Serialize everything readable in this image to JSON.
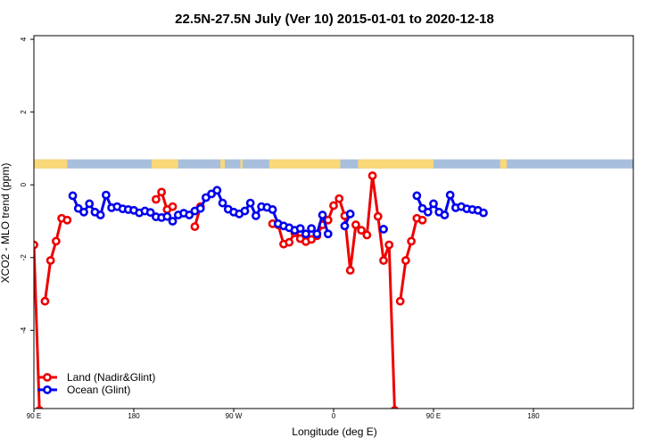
{
  "chart_data": {
    "type": "line",
    "title": "22.5N-27.5N July (Ver 10)   2015-01-01 to 2020-12-18",
    "xlabel": "Longitude (deg E)",
    "ylabel": "XCO2 - MLO trend (ppm)",
    "xlim": [
      -90,
      180
    ],
    "ylim": [
      -6.15,
      4.1
    ],
    "x_ticks": [
      {
        "value": -90,
        "label": "90 E"
      },
      {
        "value": -45,
        "label": "180"
      },
      {
        "value": 0,
        "label": "90 W"
      },
      {
        "value": 45,
        "label": "0"
      },
      {
        "value": 90,
        "label": "90 E"
      },
      {
        "value": 135,
        "label": "180"
      }
    ],
    "y_ticks": [
      {
        "value": 4,
        "label": "4"
      },
      {
        "value": 2,
        "label": "2"
      },
      {
        "value": 0,
        "label": "0"
      },
      {
        "value": -2,
        "label": "-2"
      },
      {
        "value": -4,
        "label": "-4"
      }
    ],
    "grid": false,
    "legend_position": "bottom-left",
    "land_band": {
      "y_top": 0.7,
      "y_bottom": 0.45,
      "ocean_color": "#a8bedd",
      "land_color": "#f8d878",
      "land_ranges": [
        [
          -90,
          -75
        ],
        [
          -37,
          -25
        ],
        [
          -6,
          -4
        ],
        [
          3,
          4
        ],
        [
          16,
          48
        ],
        [
          56,
          90
        ],
        [
          120,
          123
        ]
      ]
    },
    "series": [
      {
        "name": "Land (Nadir&Glint)",
        "color": "#ee0000",
        "segments": [
          [
            [
              -90,
              -1.65
            ],
            [
              -87.5,
              -6.2
            ]
          ],
          [
            [
              -85,
              -3.2
            ],
            [
              -82.5,
              -2.08
            ],
            [
              -80,
              -1.55
            ],
            [
              -77.5,
              -0.92
            ],
            [
              -75,
              -0.97
            ]
          ],
          [
            [
              -35,
              -0.4
            ],
            [
              -32.5,
              -0.2
            ],
            [
              -30,
              -0.68
            ],
            [
              -27.5,
              -0.6
            ]
          ],
          [
            [
              -17.5,
              -1.15
            ],
            [
              -15,
              -0.6
            ]
          ],
          [
            [
              17.5,
              -1.07
            ],
            [
              20,
              -1.1
            ],
            [
              22.5,
              -1.63
            ],
            [
              25,
              -1.58
            ],
            [
              27.5,
              -1.32
            ],
            [
              30,
              -1.48
            ],
            [
              32.5,
              -1.56
            ],
            [
              35,
              -1.5
            ],
            [
              37.5,
              -1.4
            ],
            [
              40,
              -1.1
            ],
            [
              42.5,
              -0.97
            ],
            [
              45,
              -0.57
            ],
            [
              47.5,
              -0.38
            ],
            [
              50,
              -0.85
            ],
            [
              52.5,
              -2.35
            ],
            [
              55,
              -1.1
            ],
            [
              57.5,
              -1.25
            ],
            [
              60,
              -1.38
            ],
            [
              62.5,
              0.25
            ],
            [
              65,
              -0.87
            ],
            [
              67.5,
              -2.08
            ],
            [
              70,
              -1.65
            ],
            [
              72.5,
              -6.2
            ]
          ],
          [
            [
              75,
              -3.2
            ],
            [
              77.5,
              -2.08
            ],
            [
              80,
              -1.55
            ],
            [
              82.5,
              -0.92
            ],
            [
              85,
              -0.97
            ]
          ]
        ]
      },
      {
        "name": "Ocean (Glint)",
        "color": "#0000ee",
        "segments": [
          [
            [
              -72.5,
              -0.3
            ],
            [
              -70,
              -0.65
            ],
            [
              -67.5,
              -0.75
            ],
            [
              -65,
              -0.52
            ],
            [
              -62.5,
              -0.75
            ],
            [
              -60,
              -0.83
            ],
            [
              -57.5,
              -0.28
            ],
            [
              -55,
              -0.63
            ],
            [
              -52.5,
              -0.6
            ],
            [
              -50,
              -0.66
            ],
            [
              -47.5,
              -0.68
            ],
            [
              -45,
              -0.7
            ],
            [
              -42.5,
              -0.77
            ],
            [
              -40,
              -0.72
            ],
            [
              -37.5,
              -0.76
            ],
            [
              -35,
              -0.88
            ],
            [
              -32.5,
              -0.9
            ],
            [
              -30,
              -0.87
            ],
            [
              -27.5,
              -1.0
            ],
            [
              -25,
              -0.83
            ],
            [
              -22.5,
              -0.78
            ],
            [
              -20,
              -0.83
            ],
            [
              -17.5,
              -0.72
            ],
            [
              -15,
              -0.65
            ],
            [
              -12.5,
              -0.35
            ],
            [
              -10,
              -0.25
            ],
            [
              -7.5,
              -0.15
            ],
            [
              -5,
              -0.5
            ],
            [
              -2.5,
              -0.67
            ],
            [
              0,
              -0.75
            ],
            [
              2.5,
              -0.8
            ],
            [
              5,
              -0.72
            ],
            [
              7.5,
              -0.5
            ],
            [
              10,
              -0.85
            ],
            [
              12.5,
              -0.6
            ],
            [
              15,
              -0.62
            ],
            [
              17.5,
              -0.68
            ],
            [
              20,
              -1.07
            ],
            [
              22.5,
              -1.13
            ],
            [
              25,
              -1.18
            ],
            [
              27.5,
              -1.25
            ],
            [
              30,
              -1.2
            ],
            [
              32.5,
              -1.35
            ],
            [
              35,
              -1.2
            ],
            [
              37.5,
              -1.35
            ],
            [
              40,
              -0.83
            ],
            [
              42.5,
              -1.35
            ]
          ],
          [
            [
              50,
              -1.13
            ],
            [
              52.5,
              -0.8
            ]
          ],
          [
            [
              67.5,
              -1.22
            ]
          ],
          [
            [
              82.5,
              -0.3
            ],
            [
              85,
              -0.65
            ],
            [
              87.5,
              -0.75
            ],
            [
              90,
              -0.52
            ],
            [
              92.5,
              -0.75
            ],
            [
              95,
              -0.83
            ],
            [
              97.5,
              -0.28
            ],
            [
              100,
              -0.63
            ],
            [
              102.5,
              -0.6
            ],
            [
              105,
              -0.66
            ],
            [
              107.5,
              -0.68
            ],
            [
              110,
              -0.7
            ],
            [
              112.5,
              -0.77
            ]
          ]
        ]
      }
    ]
  }
}
